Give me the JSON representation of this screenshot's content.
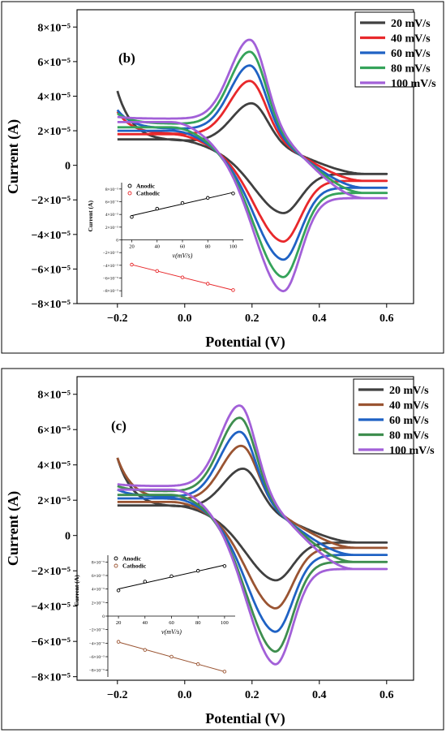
{
  "chart_data": [
    {
      "type": "line",
      "panel_label": "(b)",
      "xlabel": "Potential (V)",
      "ylabel": "Current (A)",
      "xlim": [
        -0.32,
        0.68
      ],
      "ylim": [
        -8e-05,
        9e-05
      ],
      "x_ticks": [
        -0.2,
        0.0,
        0.2,
        0.4,
        0.6
      ],
      "x_tick_labels": [
        "−0.2",
        "0.0",
        "0.2",
        "0.4",
        "0.6"
      ],
      "y_ticks": [
        8e-05,
        6e-05,
        4e-05,
        2e-05,
        0,
        -2e-05,
        -4e-05,
        -6e-05,
        -8e-05
      ],
      "y_tick_labels": [
        "8×10⁻⁵",
        "6×10⁻⁵",
        "4×10⁻⁵",
        "2×10⁻⁵",
        "0",
        "−2×10⁻⁵",
        "−4×10⁻⁵",
        "−6×10⁻⁵",
        "−8×10⁻⁵"
      ],
      "legend_position": "top-right",
      "series": [
        {
          "name": "20 mV/s",
          "color": "#404040",
          "E_pa": 0.2,
          "I_pa": 3.6e-05,
          "E_pc": 0.29,
          "I_pc": -2.6e-05,
          "I_start": 4.3e-05,
          "I_base_ox": 1.4e-05,
          "I_end": -5e-06,
          "I_base_red": 1.5e-05
        },
        {
          "name": "40 mV/s",
          "color": "#e8282b",
          "E_pa": 0.195,
          "I_pa": 4.9e-05,
          "E_pc": 0.29,
          "I_pc": -4.1e-05,
          "I_start": 3.1e-05,
          "I_base_ox": 1.8e-05,
          "I_end": -9e-06,
          "I_base_red": 1.8e-05
        },
        {
          "name": "60 mV/s",
          "color": "#1f62c4",
          "E_pa": 0.195,
          "I_pa": 5.8e-05,
          "E_pc": 0.29,
          "I_pc": -5e-05,
          "I_start": 3.2e-05,
          "I_base_ox": 2.1e-05,
          "I_end": -1.3e-05,
          "I_base_red": 2e-05
        },
        {
          "name": "80 mV/s",
          "color": "#35a35a",
          "E_pa": 0.195,
          "I_pa": 6.6e-05,
          "E_pc": 0.29,
          "I_pc": -5.9e-05,
          "I_start": 3e-05,
          "I_base_ox": 2.4e-05,
          "I_end": -1.6e-05,
          "I_base_red": 2.2e-05
        },
        {
          "name": "100 mV/s",
          "color": "#a260d8",
          "E_pa": 0.195,
          "I_pa": 7.3e-05,
          "E_pc": 0.29,
          "I_pc": -6.6e-05,
          "I_start": 2.8e-05,
          "I_base_ox": 2.7e-05,
          "I_end": -1.9e-05,
          "I_base_red": 2.5e-05
        }
      ],
      "inset": {
        "type": "scatter",
        "xlabel": "v(mV/s)",
        "ylabel": "Current (A)",
        "xlim": [
          12,
          108
        ],
        "ylim": [
          -9e-05,
          9e-05
        ],
        "x_ticks": [
          20,
          40,
          60,
          80,
          100
        ],
        "y_ticks": [
          8e-05,
          6e-05,
          4e-05,
          2e-05,
          0,
          -2e-05,
          -4e-05,
          -6e-05,
          -8e-05
        ],
        "y_tick_labels": [
          "8×10⁻⁵",
          "6×10⁻⁵",
          "4×10⁻⁵",
          "2×10⁻⁵",
          "0",
          "−2×10⁻⁵",
          "−4×10⁻⁵",
          "−6×10⁻⁵",
          "−8×10⁻⁵"
        ],
        "series": [
          {
            "name": "Anodic",
            "color": "#000000",
            "x": [
              20,
              40,
              60,
              80,
              100
            ],
            "y": [
              3.6e-05,
              4.9e-05,
              5.8e-05,
              6.6e-05,
              7.3e-05
            ]
          },
          {
            "name": "Cathodic",
            "color": "#e8282b",
            "x": [
              20,
              40,
              60,
              80,
              100
            ],
            "y": [
              -3.9e-05,
              -4.9e-05,
              -5.9e-05,
              -6.9e-05,
              -7.9e-05
            ]
          }
        ]
      }
    },
    {
      "type": "line",
      "panel_label": "(c)",
      "xlabel": "Potential (V)",
      "ylabel": "Current (A)",
      "xlim": [
        -0.32,
        0.68
      ],
      "ylim": [
        -8.2e-05,
        9e-05
      ],
      "x_ticks": [
        -0.2,
        0.0,
        0.2,
        0.4,
        0.6
      ],
      "x_tick_labels": [
        "−0.2",
        "0.0",
        "0.2",
        "0.4",
        "0.6"
      ],
      "y_ticks": [
        8e-05,
        6e-05,
        4e-05,
        2e-05,
        0,
        -2e-05,
        -4e-05,
        -6e-05,
        -8e-05
      ],
      "y_tick_labels": [
        "8×10⁻⁵",
        "6×10⁻⁵",
        "4×10⁻⁵",
        "2×10⁻⁵",
        "0",
        "−2×10⁻⁵",
        "−4×10⁻⁵",
        "−6×10⁻⁵",
        "−8×10⁻⁵"
      ],
      "legend_position": "top-right",
      "series": [
        {
          "name": "20 mV/s",
          "color": "#404040",
          "E_pa": 0.175,
          "I_pa": 3.8e-05,
          "E_pc": 0.265,
          "I_pc": -2.5e-05,
          "I_start": 4.4e-05,
          "I_base_ox": 1.6e-05,
          "I_end": -4e-06,
          "I_base_red": 1.7e-05
        },
        {
          "name": "40 mV/s",
          "color": "#9a5432",
          "E_pa": 0.17,
          "I_pa": 5.1e-05,
          "E_pc": 0.265,
          "I_pc": -4e-05,
          "I_start": 4.4e-05,
          "I_base_ox": 2e-05,
          "I_end": -7e-06,
          "I_base_red": 1.9e-05
        },
        {
          "name": "60 mV/s",
          "color": "#1f62c4",
          "E_pa": 0.165,
          "I_pa": 5.9e-05,
          "E_pc": 0.265,
          "I_pc": -5.2e-05,
          "I_start": 2.6e-05,
          "I_base_ox": 2.2e-05,
          "I_end": -1.1e-05,
          "I_base_red": 2.1e-05
        },
        {
          "name": "80 mV/s",
          "color": "#3e8e4f",
          "E_pa": 0.165,
          "I_pa": 6.7e-05,
          "E_pc": 0.265,
          "I_pc": -6.2e-05,
          "I_start": 2.8e-05,
          "I_base_ox": 2.5e-05,
          "I_end": -1.5e-05,
          "I_base_red": 2.3e-05
        },
        {
          "name": "100 mV/s",
          "color": "#a260d8",
          "E_pa": 0.165,
          "I_pa": 7.4e-05,
          "E_pc": 0.265,
          "I_pc": -6.8e-05,
          "I_start": 2.9e-05,
          "I_base_ox": 2.8e-05,
          "I_end": -1.9e-05,
          "I_base_red": 2.6e-05
        }
      ],
      "inset": {
        "type": "scatter",
        "xlabel": "v(mV/s)",
        "ylabel": "Current (A)",
        "xlim": [
          12,
          108
        ],
        "ylim": [
          -9e-05,
          9e-05
        ],
        "x_ticks": [
          20,
          40,
          60,
          80,
          100
        ],
        "y_ticks": [
          8e-05,
          6e-05,
          4e-05,
          2e-05,
          0,
          -2e-05,
          -4e-05,
          -6e-05,
          -8e-05
        ],
        "y_tick_labels": [
          "8×10⁻⁵",
          "6×10⁻⁵",
          "4×10⁻⁵",
          "2×10⁻⁵",
          "0",
          "−2×10⁻⁵",
          "−4×10⁻⁵",
          "−6×10⁻⁵",
          "−8×10⁻⁵"
        ],
        "series": [
          {
            "name": "Anodic",
            "color": "#000000",
            "x": [
              20,
              40,
              60,
              80,
              100
            ],
            "y": [
              3.8e-05,
              5.1e-05,
              5.9e-05,
              6.7e-05,
              7.4e-05
            ]
          },
          {
            "name": "Cathodic",
            "color": "#9a5432",
            "x": [
              20,
              40,
              60,
              80,
              100
            ],
            "y": [
              -3.8e-05,
              -5e-05,
              -6e-05,
              -7.1e-05,
              -8.2e-05
            ]
          }
        ]
      }
    }
  ]
}
